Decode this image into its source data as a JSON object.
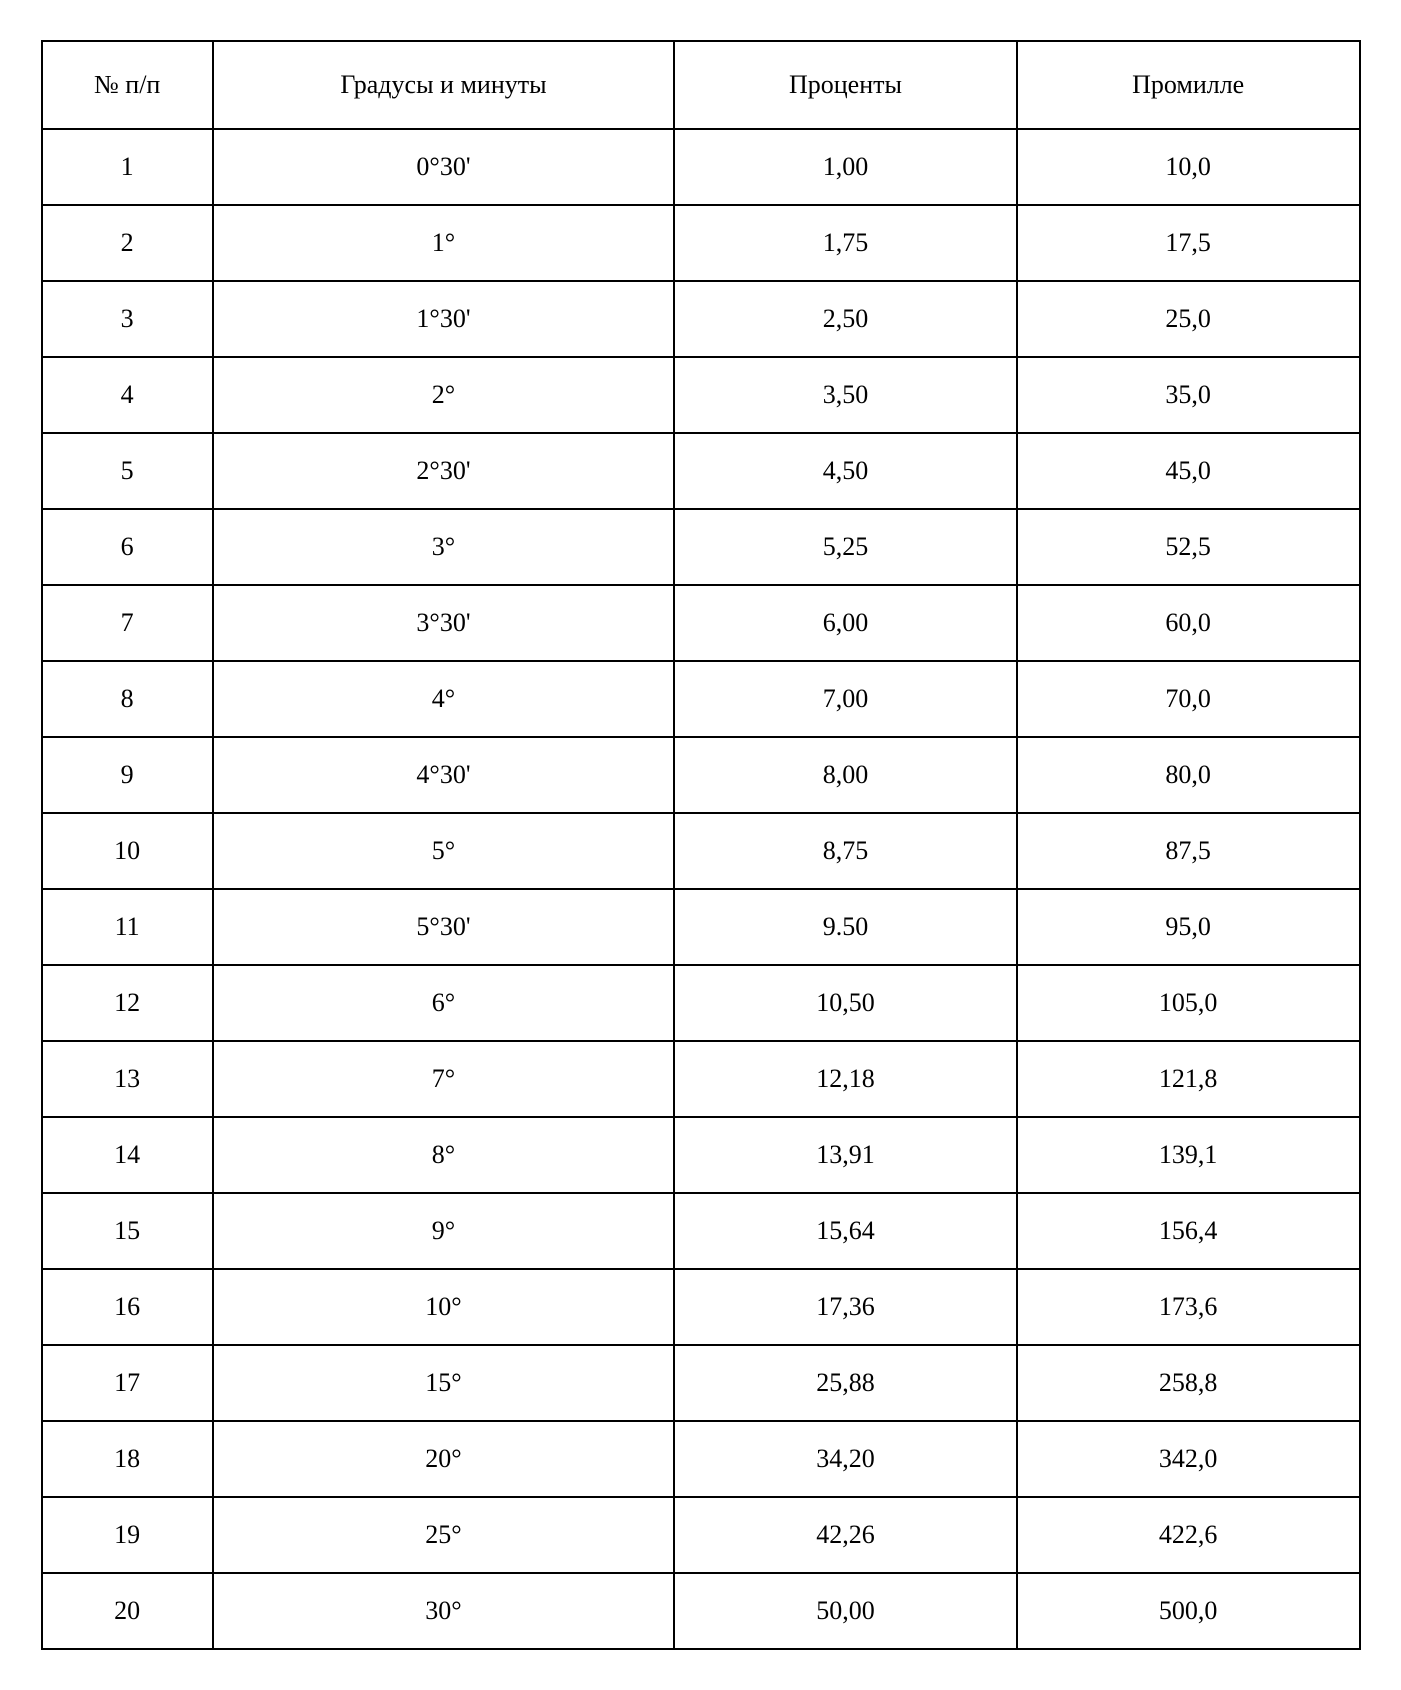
{
  "table": {
    "type": "table",
    "background_color": "#ffffff",
    "border_color": "#000000",
    "border_width": 2,
    "text_color": "#000000",
    "font_family": "Times New Roman",
    "header_fontsize": 26,
    "cell_fontsize": 26,
    "columns": [
      {
        "key": "num",
        "label": "№ п/п",
        "width_pct": 13,
        "align": "center"
      },
      {
        "key": "degrees",
        "label": "Градусы и минуты",
        "width_pct": 35,
        "align": "center"
      },
      {
        "key": "percent",
        "label": "Проценты",
        "width_pct": 26,
        "align": "center"
      },
      {
        "key": "permille",
        "label": "Промилле",
        "width_pct": 26,
        "align": "center"
      }
    ],
    "rows": [
      {
        "num": "1",
        "degrees": "0°30'",
        "percent": "1,00",
        "permille": "10,0"
      },
      {
        "num": "2",
        "degrees": "1°",
        "percent": "1,75",
        "permille": "17,5"
      },
      {
        "num": "3",
        "degrees": "1°30'",
        "percent": "2,50",
        "permille": "25,0"
      },
      {
        "num": "4",
        "degrees": "2°",
        "percent": "3,50",
        "permille": "35,0"
      },
      {
        "num": "5",
        "degrees": "2°30'",
        "percent": "4,50",
        "permille": "45,0"
      },
      {
        "num": "6",
        "degrees": "3°",
        "percent": "5,25",
        "permille": "52,5"
      },
      {
        "num": "7",
        "degrees": "3°30'",
        "percent": "6,00",
        "permille": "60,0"
      },
      {
        "num": "8",
        "degrees": "4°",
        "percent": "7,00",
        "permille": "70,0"
      },
      {
        "num": "9",
        "degrees": "4°30'",
        "percent": "8,00",
        "permille": "80,0"
      },
      {
        "num": "10",
        "degrees": "5°",
        "percent": "8,75",
        "permille": "87,5"
      },
      {
        "num": "11",
        "degrees": "5°30'",
        "percent": "9.50",
        "permille": "95,0"
      },
      {
        "num": "12",
        "degrees": "6°",
        "percent": "10,50",
        "permille": "105,0"
      },
      {
        "num": "13",
        "degrees": "7°",
        "percent": "12,18",
        "permille": "121,8"
      },
      {
        "num": "14",
        "degrees": "8°",
        "percent": "13,91",
        "permille": "139,1"
      },
      {
        "num": "15",
        "degrees": "9°",
        "percent": "15,64",
        "permille": "156,4"
      },
      {
        "num": "16",
        "degrees": "10°",
        "percent": "17,36",
        "permille": "173,6"
      },
      {
        "num": "17",
        "degrees": "15°",
        "percent": "25,88",
        "permille": "258,8"
      },
      {
        "num": "18",
        "degrees": "20°",
        "percent": "34,20",
        "permille": "342,0"
      },
      {
        "num": "19",
        "degrees": "25°",
        "percent": "42,26",
        "permille": "422,6"
      },
      {
        "num": "20",
        "degrees": "30°",
        "percent": "50,00",
        "permille": "500,0"
      }
    ]
  }
}
